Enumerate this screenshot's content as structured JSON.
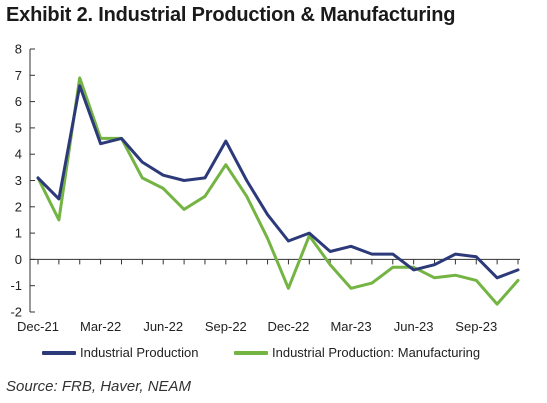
{
  "title": "Exhibit 2. Industrial Production & Manufacturing",
  "source": "Source: FRB, Haver, NEAM",
  "colors": {
    "ip": "#2d3a7a",
    "mfg": "#74b443",
    "axis": "#333333"
  },
  "chart_data": {
    "type": "line",
    "title": "Exhibit 2. Industrial Production & Manufacturing",
    "xlabel": "",
    "ylabel": "",
    "ylim": [
      -2,
      8
    ],
    "yticks": [
      8,
      7,
      6,
      5,
      4,
      3,
      2,
      1,
      0,
      -1,
      -2
    ],
    "x": [
      "Dec-21",
      "Jan-22",
      "Feb-22",
      "Mar-22",
      "Apr-22",
      "May-22",
      "Jun-22",
      "Jul-22",
      "Aug-22",
      "Sep-22",
      "Oct-22",
      "Nov-22",
      "Dec-22",
      "Jan-23",
      "Feb-23",
      "Mar-23",
      "Apr-23",
      "May-23",
      "Jun-23",
      "Jul-23",
      "Aug-23",
      "Sep-23",
      "Oct-23",
      "Nov-23"
    ],
    "xtick_labels": [
      "Dec-21",
      "Mar-22",
      "Jun-22",
      "Sep-22",
      "Dec-22",
      "Mar-23",
      "Jun-23",
      "Sep-23"
    ],
    "xtick_indices": [
      0,
      3,
      6,
      9,
      12,
      15,
      18,
      21
    ],
    "grid": false,
    "legend_position": "bottom",
    "series": [
      {
        "name": "Industrial Production",
        "color": "#2d3a7a",
        "values": [
          3.1,
          2.3,
          6.6,
          4.4,
          4.6,
          3.7,
          3.2,
          3.0,
          3.1,
          4.5,
          3.0,
          1.7,
          0.7,
          1.0,
          0.3,
          0.5,
          0.2,
          0.2,
          -0.4,
          -0.2,
          0.2,
          0.1,
          -0.7,
          -0.4
        ]
      },
      {
        "name": "Industrial Production: Manufacturing",
        "color": "#74b443",
        "values": [
          3.1,
          1.5,
          6.9,
          4.6,
          4.6,
          3.1,
          2.7,
          1.9,
          2.4,
          3.6,
          2.4,
          0.8,
          -1.1,
          0.9,
          -0.2,
          -1.1,
          -0.9,
          -0.3,
          -0.3,
          -0.7,
          -0.6,
          -0.8,
          -1.7,
          -0.8
        ]
      }
    ]
  }
}
